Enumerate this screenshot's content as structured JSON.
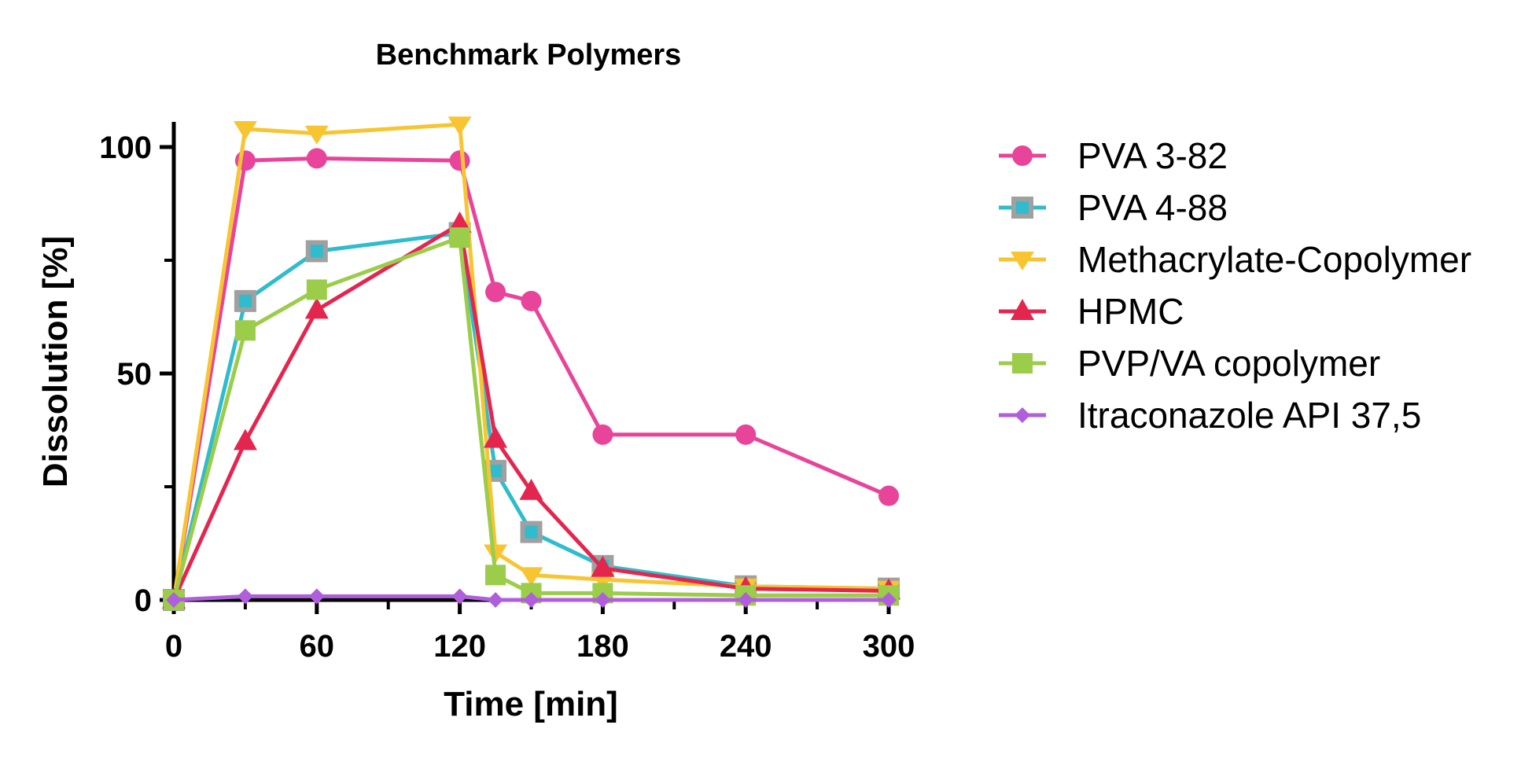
{
  "chart_data": {
    "type": "line",
    "title": "Benchmark Polymers",
    "xlabel": "Time [min]",
    "ylabel": "Dissolution [%]",
    "xlim": [
      0,
      300
    ],
    "ylim": [
      0,
      105
    ],
    "x_ticks": [
      0,
      60,
      120,
      180,
      240,
      300
    ],
    "y_ticks": [
      0,
      50,
      100
    ],
    "x_minor_ticks": [
      30,
      90,
      150,
      210,
      270
    ],
    "y_minor_ticks": [
      25,
      75
    ],
    "grid": false,
    "legend_position": "right",
    "series": [
      {
        "name": "PVA 3-82",
        "color": "#e8449a",
        "marker": "circle",
        "x": [
          0,
          30,
          60,
          120,
          135,
          150,
          180,
          240,
          300
        ],
        "y": [
          0,
          97,
          97.5,
          97,
          68,
          66,
          36.5,
          36.5,
          23
        ]
      },
      {
        "name": "PVA 4-88",
        "color": "#2fbccc",
        "marker_edge": "#a0a0a0",
        "marker": "square-outlined",
        "x": [
          0,
          30,
          60,
          120,
          135,
          150,
          180,
          240,
          300
        ],
        "y": [
          0,
          66,
          77,
          81,
          28.5,
          15,
          7.5,
          3,
          2.5
        ]
      },
      {
        "name": "Methacrylate-Copolymer",
        "color": "#f7c531",
        "marker": "triangle-down",
        "x": [
          0,
          30,
          60,
          120,
          135,
          150,
          180,
          240,
          300
        ],
        "y": [
          0,
          104,
          103,
          105,
          10.5,
          5.5,
          4.5,
          3,
          2.5
        ]
      },
      {
        "name": "HPMC",
        "color": "#e4264f",
        "marker": "triangle-up",
        "x": [
          0,
          30,
          60,
          120,
          135,
          150,
          180,
          240,
          300
        ],
        "y": [
          0,
          35,
          64,
          83,
          35.5,
          24,
          7,
          2.5,
          2
        ]
      },
      {
        "name": "PVP/VA copolymer",
        "color": "#9bcc4a",
        "marker": "square",
        "x": [
          0,
          30,
          60,
          120,
          135,
          150,
          180,
          240,
          300
        ],
        "y": [
          0,
          59.5,
          68.5,
          80,
          5.5,
          1.5,
          1.5,
          1,
          1
        ]
      },
      {
        "name": "Itraconazole API 37,5",
        "color": "#b05fdc",
        "marker": "diamond",
        "x": [
          0,
          30,
          60,
          120,
          135,
          150,
          180,
          240,
          300
        ],
        "y": [
          0,
          0.8,
          0.8,
          0.8,
          0,
          0,
          0,
          0,
          0
        ]
      }
    ]
  }
}
